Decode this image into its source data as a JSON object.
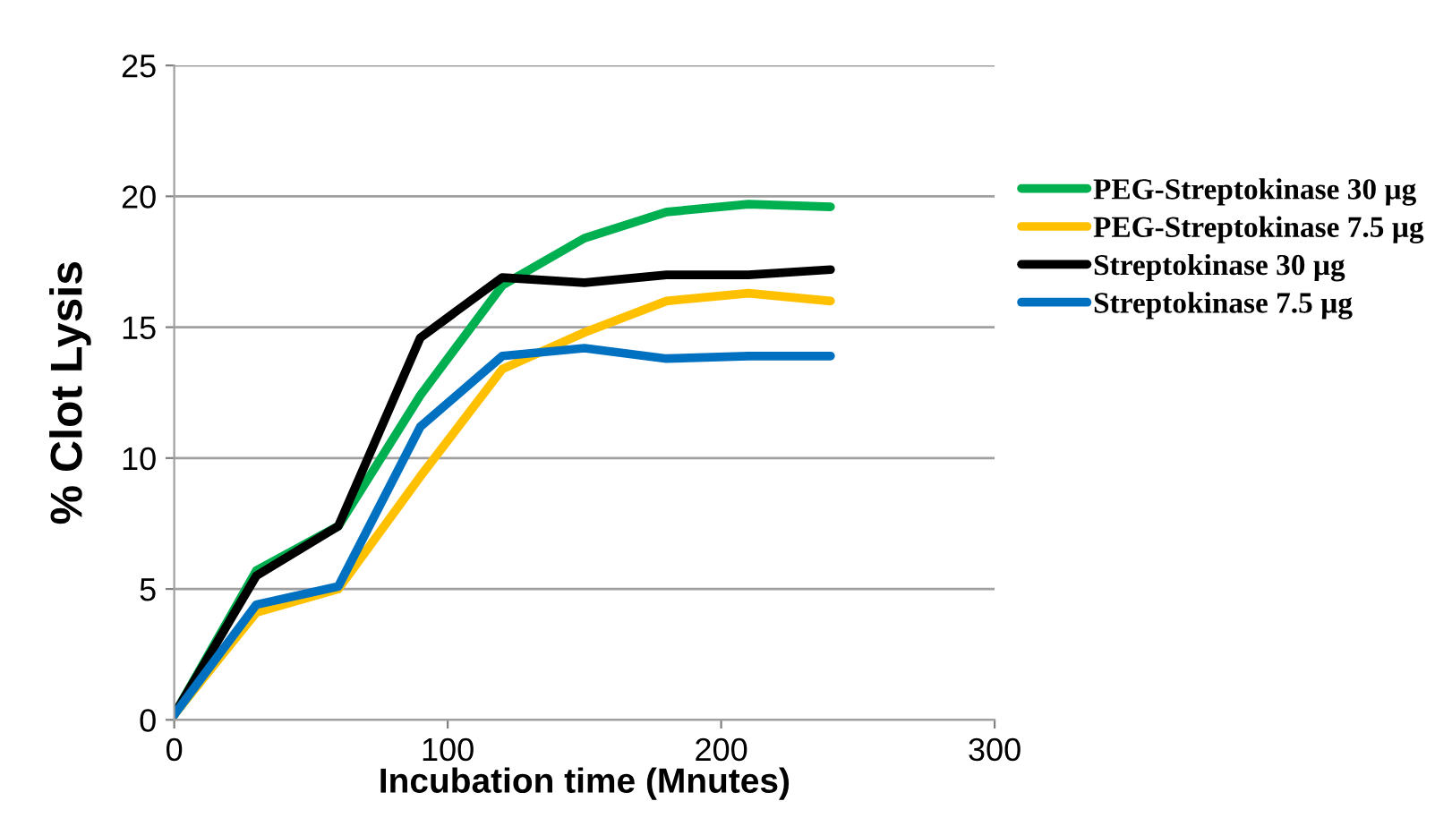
{
  "chart_data": {
    "type": "line",
    "xlabel": "Incubation time (Mnutes)",
    "ylabel": "% Clot Lysis",
    "x": [
      0,
      30,
      60,
      90,
      120,
      150,
      180,
      210,
      240
    ],
    "series": [
      {
        "name": "PEG-Streptokinase 30 µg",
        "color": "#00b050",
        "values": [
          0.2,
          5.7,
          7.4,
          12.4,
          16.6,
          18.4,
          19.4,
          19.7,
          19.6
        ]
      },
      {
        "name": "PEG-Streptokinase 7.5 µg",
        "color": "#ffc000",
        "values": [
          0.2,
          4.1,
          5.0,
          9.3,
          13.4,
          14.8,
          16.0,
          16.3,
          16.0
        ]
      },
      {
        "name": "Streptokinase 30 µg",
        "color": "#000000",
        "values": [
          0.2,
          5.5,
          7.4,
          14.6,
          16.9,
          16.7,
          17.0,
          17.0,
          17.2
        ]
      },
      {
        "name": "Streptokinase 7.5 µg",
        "color": "#0070c0",
        "values": [
          0.2,
          4.4,
          5.1,
          11.2,
          13.9,
          14.2,
          13.8,
          13.9,
          13.9
        ]
      }
    ],
    "xlim": [
      0,
      300
    ],
    "xticks": [
      0,
      100,
      200,
      300
    ],
    "ylim": [
      0,
      25
    ],
    "yticks": [
      0,
      5,
      10,
      15,
      20,
      25
    ],
    "grid": "y",
    "legend": "right",
    "marker": "none",
    "line_style": "solid"
  }
}
